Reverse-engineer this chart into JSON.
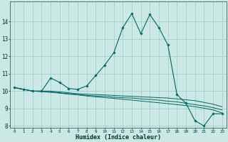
{
  "title": "",
  "xlabel": "Humidex (Indice chaleur)",
  "background_color": "#cce8e4",
  "grid_color": "#99cccc",
  "line_color": "#006666",
  "xlim": [
    -0.5,
    23.5
  ],
  "ylim": [
    8,
    15
  ],
  "yticks": [
    8,
    9,
    10,
    11,
    12,
    13,
    14
  ],
  "xticks": [
    0,
    1,
    2,
    3,
    4,
    5,
    6,
    7,
    8,
    9,
    10,
    11,
    12,
    13,
    14,
    15,
    16,
    17,
    18,
    19,
    20,
    21,
    22,
    23
  ],
  "series": [
    [
      10.2,
      10.1,
      10.0,
      10.0,
      10.75,
      10.5,
      10.15,
      10.1,
      10.3,
      10.9,
      11.5,
      12.2,
      13.65,
      14.45,
      13.3,
      14.4,
      13.65,
      12.65,
      9.8,
      9.3,
      8.3,
      8.0,
      8.7,
      8.7
    ],
    [
      10.2,
      10.1,
      10.0,
      10.0,
      10.0,
      9.95,
      9.9,
      9.85,
      9.82,
      9.8,
      9.78,
      9.75,
      9.72,
      9.7,
      9.67,
      9.65,
      9.62,
      9.6,
      9.55,
      9.5,
      9.45,
      9.35,
      9.25,
      9.1
    ],
    [
      10.2,
      10.1,
      10.0,
      9.98,
      9.95,
      9.9,
      9.85,
      9.8,
      9.75,
      9.72,
      9.7,
      9.65,
      9.62,
      9.6,
      9.55,
      9.52,
      9.48,
      9.42,
      9.38,
      9.3,
      9.22,
      9.15,
      9.05,
      8.92
    ],
    [
      10.2,
      10.1,
      10.0,
      9.97,
      9.93,
      9.88,
      9.83,
      9.78,
      9.72,
      9.67,
      9.62,
      9.58,
      9.53,
      9.48,
      9.43,
      9.38,
      9.33,
      9.28,
      9.22,
      9.17,
      9.1,
      9.02,
      8.92,
      8.75
    ]
  ]
}
